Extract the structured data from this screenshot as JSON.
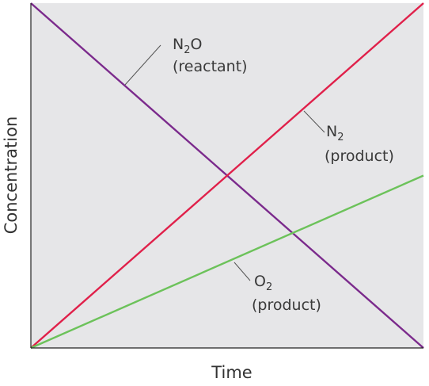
{
  "chart_data": {
    "type": "line",
    "xlabel": "Time",
    "ylabel": "Concentration",
    "xlim": [
      0,
      1
    ],
    "ylim": [
      0,
      1
    ],
    "grid": false,
    "legend": "none",
    "background": "#e6e6e8",
    "series": [
      {
        "name": "N2O (reactant)",
        "color": "#7b2a8c",
        "x": [
          0,
          1
        ],
        "y": [
          1,
          0
        ],
        "label": {
          "formula_main": "N",
          "formula_sub": "2",
          "formula_tail": "O",
          "role": "(reactant)"
        }
      },
      {
        "name": "N2 (product)",
        "color": "#e0204a",
        "x": [
          0,
          1
        ],
        "y": [
          0,
          1
        ],
        "label": {
          "formula_main": "N",
          "formula_sub": "2",
          "formula_tail": "",
          "role": "(product)"
        }
      },
      {
        "name": "O2 (product)",
        "color": "#6cc25a",
        "x": [
          0,
          1
        ],
        "y": [
          0,
          0.5
        ],
        "label": {
          "formula_main": "O",
          "formula_sub": "2",
          "formula_tail": "",
          "role": "(product)"
        }
      }
    ]
  }
}
